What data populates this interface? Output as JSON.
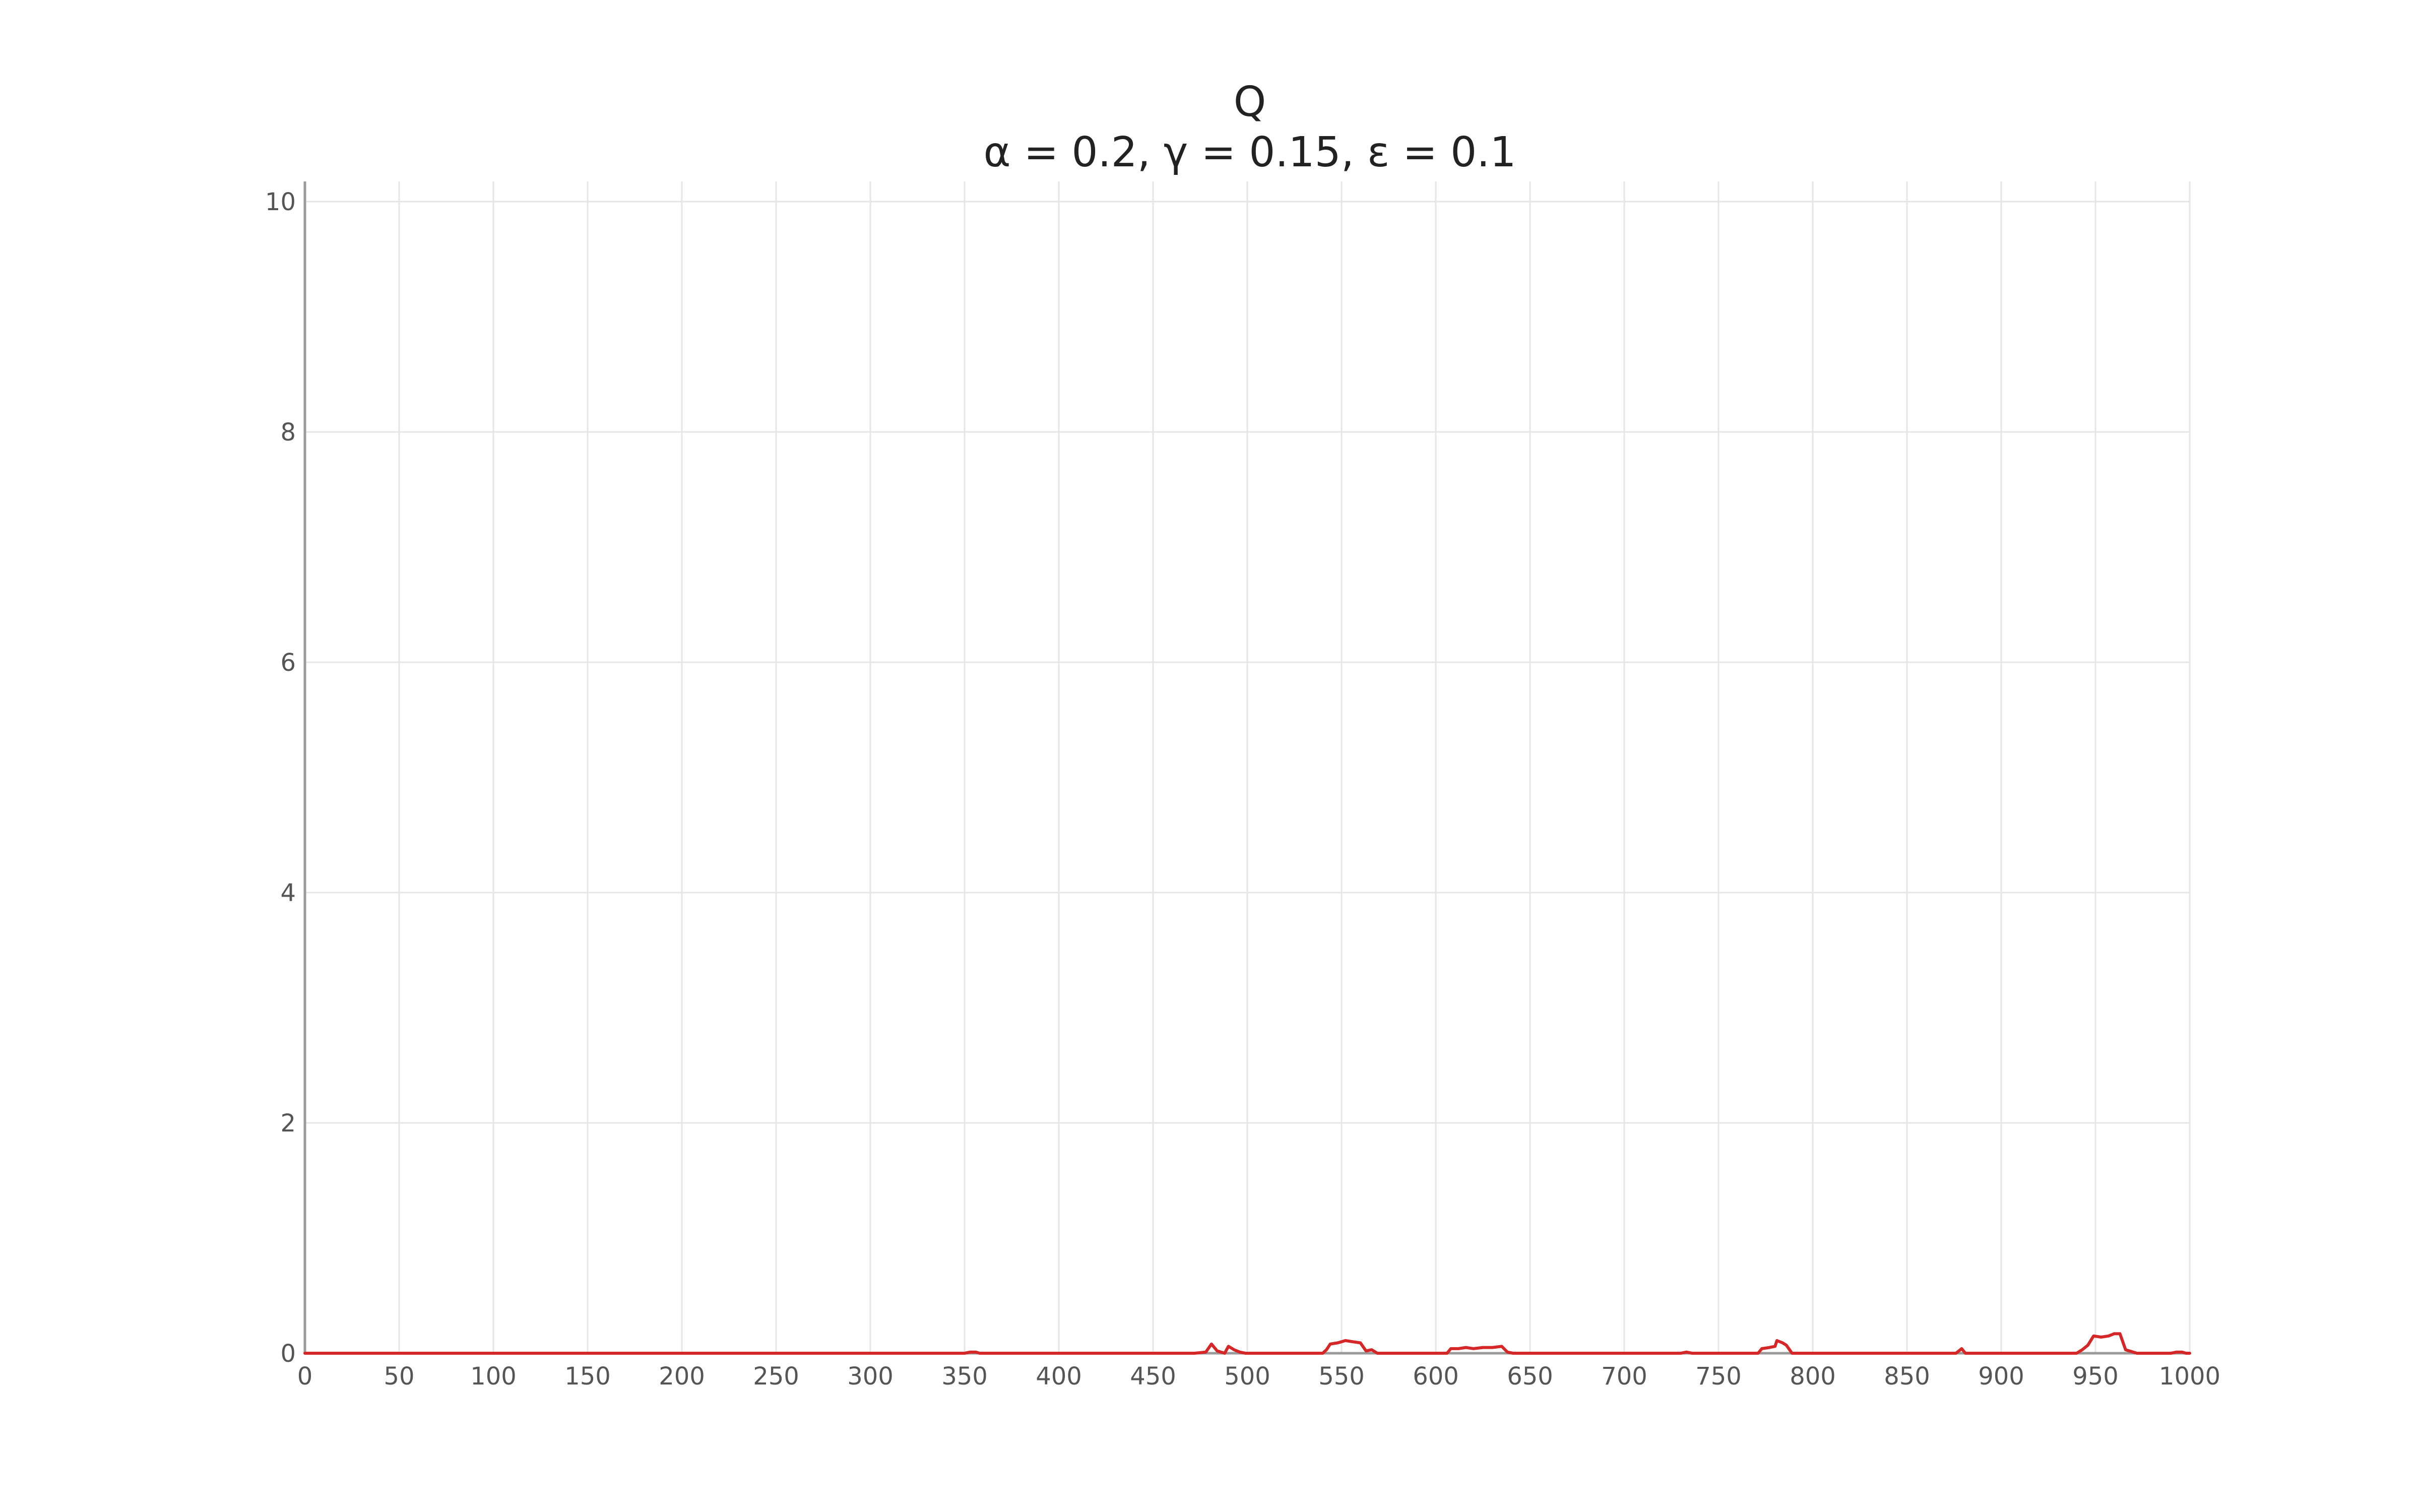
{
  "chart_data": {
    "type": "line",
    "title": "Q",
    "subtitle": "α = 0.2, γ = 0.15, ε = 0.1",
    "xlabel": "",
    "ylabel": "",
    "xlim": [
      0,
      1000
    ],
    "ylim": [
      0,
      10
    ],
    "x_ticks": [
      0,
      50,
      100,
      150,
      200,
      250,
      300,
      350,
      400,
      450,
      500,
      550,
      600,
      650,
      700,
      750,
      800,
      850,
      900,
      950,
      1000
    ],
    "y_ticks": [
      0,
      2,
      4,
      6,
      8,
      10
    ],
    "grid": true,
    "series": [
      {
        "color": "#d62728",
        "points": [
          [
            0,
            0
          ],
          [
            350,
            0
          ],
          [
            353,
            0.01
          ],
          [
            356,
            0.01
          ],
          [
            358,
            0
          ],
          [
            472,
            0
          ],
          [
            478,
            0.01
          ],
          [
            481,
            0.08
          ],
          [
            484,
            0.02
          ],
          [
            488,
            0
          ],
          [
            490,
            0.06
          ],
          [
            493,
            0.03
          ],
          [
            496,
            0.01
          ],
          [
            499,
            0
          ],
          [
            540,
            0
          ],
          [
            542,
            0.03
          ],
          [
            544,
            0.08
          ],
          [
            548,
            0.09
          ],
          [
            552,
            0.11
          ],
          [
            556,
            0.1
          ],
          [
            560,
            0.09
          ],
          [
            563,
            0.02
          ],
          [
            566,
            0.03
          ],
          [
            569,
            0
          ],
          [
            606,
            0
          ],
          [
            608,
            0.04
          ],
          [
            612,
            0.04
          ],
          [
            616,
            0.05
          ],
          [
            620,
            0.04
          ],
          [
            625,
            0.05
          ],
          [
            630,
            0.05
          ],
          [
            635,
            0.06
          ],
          [
            638,
            0.01
          ],
          [
            641,
            0
          ],
          [
            730,
            0
          ],
          [
            733,
            0.01
          ],
          [
            736,
            0
          ],
          [
            771,
            0
          ],
          [
            773,
            0.04
          ],
          [
            777,
            0.05
          ],
          [
            780,
            0.06
          ],
          [
            781,
            0.11
          ],
          [
            784,
            0.09
          ],
          [
            786,
            0.07
          ],
          [
            789,
            0
          ],
          [
            876,
            0
          ],
          [
            879,
            0.04
          ],
          [
            881,
            0
          ],
          [
            940,
            0
          ],
          [
            943,
            0.03
          ],
          [
            946,
            0.07
          ],
          [
            949,
            0.15
          ],
          [
            953,
            0.14
          ],
          [
            957,
            0.15
          ],
          [
            960,
            0.17
          ],
          [
            963,
            0.17
          ],
          [
            966,
            0.03
          ],
          [
            970,
            0.01
          ],
          [
            972,
            0
          ],
          [
            990,
            0
          ],
          [
            993,
            0.01
          ],
          [
            996,
            0.01
          ],
          [
            998,
            0
          ],
          [
            1000,
            0
          ]
        ]
      }
    ]
  }
}
